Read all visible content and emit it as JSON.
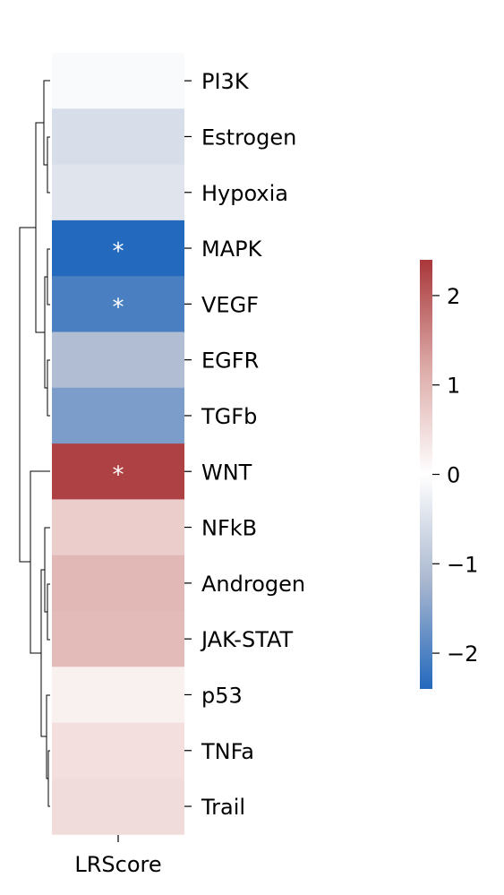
{
  "chart_data": {
    "type": "heatmap",
    "columns": [
      "LRScore"
    ],
    "rows": [
      "PI3K",
      "Estrogen",
      "Hypoxia",
      "MAPK",
      "VEGF",
      "EGFR",
      "TGFb",
      "WNT",
      "NFkB",
      "Androgen",
      "JAK-STAT",
      "p53",
      "TNFa",
      "Trail"
    ],
    "values": [
      -0.08,
      -0.55,
      -0.45,
      -2.4,
      -2.05,
      -1.1,
      -1.6,
      2.3,
      0.7,
      1.0,
      0.95,
      0.2,
      0.45,
      0.5
    ],
    "significance_marker": "*",
    "significant": [
      "MAPK",
      "VEGF",
      "WNT"
    ],
    "colormap": "vlag",
    "colormap_stops": [
      "#2369bd",
      "#a9b7cf",
      "#ffffff",
      "#dcaaa7",
      "#a9373b"
    ],
    "vmin": -2.4,
    "vmax": 2.4,
    "colorbar": {
      "ticks": [
        2,
        1,
        0,
        -1,
        -2
      ],
      "tick_labels": [
        "2",
        "1",
        "0",
        "−1",
        "−2"
      ]
    },
    "dendrogram": "left",
    "xlabel": "LRScore"
  }
}
